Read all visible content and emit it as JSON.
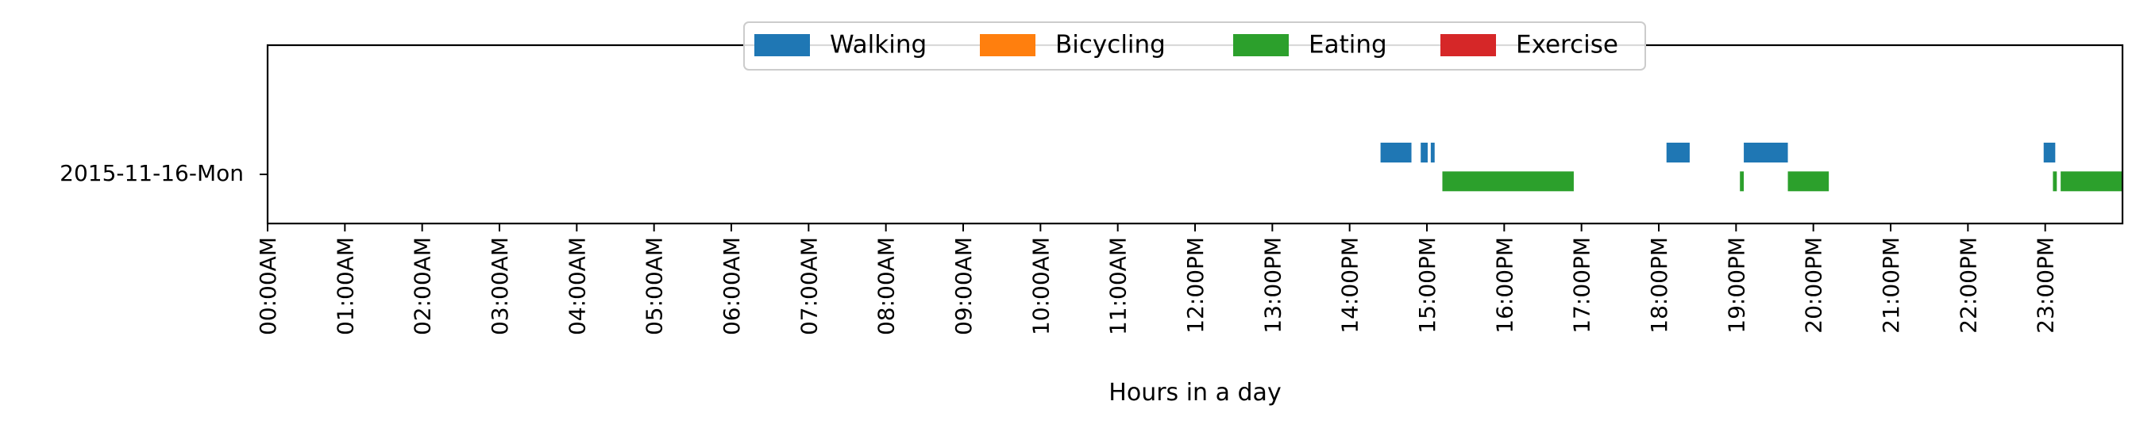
{
  "chart_data": {
    "type": "timeline",
    "xlabel": "Hours in a day",
    "xlim": [
      0,
      24
    ],
    "ylabel": "",
    "rows": [
      "2015-11-16-Mon"
    ],
    "x_tick_labels": [
      "00:00AM",
      "01:00AM",
      "02:00AM",
      "03:00AM",
      "04:00AM",
      "05:00AM",
      "06:00AM",
      "07:00AM",
      "08:00AM",
      "09:00AM",
      "10:00AM",
      "11:00AM",
      "12:00PM",
      "13:00PM",
      "14:00PM",
      "15:00PM",
      "16:00PM",
      "17:00PM",
      "18:00PM",
      "19:00PM",
      "20:00PM",
      "21:00PM",
      "22:00PM",
      "23:00PM"
    ],
    "legend": {
      "placement": "upper-center",
      "entries": [
        {
          "name": "Walking",
          "color": "#1f77b4"
        },
        {
          "name": "Bicycling",
          "color": "#ff7f0e"
        },
        {
          "name": "Eating",
          "color": "#2ca02c"
        },
        {
          "name": "Exercise",
          "color": "#d62728"
        }
      ]
    },
    "series": [
      {
        "name": "Walking",
        "color": "#1f77b4",
        "offset": -0.25,
        "intervals": [
          [
            14.4,
            14.8
          ],
          [
            14.92,
            15.01
          ],
          [
            15.05,
            15.1
          ],
          [
            18.1,
            18.4
          ],
          [
            19.1,
            19.67
          ],
          [
            22.98,
            23.13
          ]
        ]
      },
      {
        "name": "Bicycling",
        "color": "#ff7f0e",
        "offset": -0.08,
        "intervals": []
      },
      {
        "name": "Eating",
        "color": "#2ca02c",
        "offset": 0.08,
        "intervals": [
          [
            15.2,
            16.9
          ],
          [
            19.05,
            19.1
          ],
          [
            19.67,
            20.2
          ],
          [
            23.1,
            23.15
          ],
          [
            23.2,
            24.0
          ]
        ]
      },
      {
        "name": "Exercise",
        "color": "#d62728",
        "offset": 0.25,
        "intervals": []
      }
    ],
    "grid": false
  }
}
